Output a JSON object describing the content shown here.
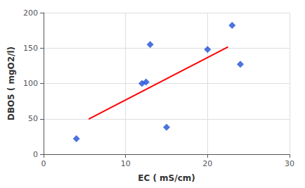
{
  "chart_data": {
    "type": "scatter",
    "xlabel": "EC ( mS/cm)",
    "ylabel": "DBO5 ( mgO2/l)",
    "series": [
      {
        "type": "scatter",
        "color": "#1F4FD8",
        "marker": "diamond",
        "x": [
          4,
          12,
          12.5,
          13,
          15,
          20,
          23,
          24
        ],
        "values": [
          22,
          100,
          102,
          155,
          38,
          148,
          182,
          127
        ]
      },
      {
        "type": "line",
        "color": "#FF0000",
        "line_style": "solid",
        "x": [
          5.5,
          22.5
        ],
        "values": [
          49.71,
          151.56
        ]
      }
    ],
    "xlim": [
      0,
      30
    ],
    "ylim": [
      0,
      200
    ],
    "xticks": [
      0,
      10,
      20,
      30
    ],
    "yticks": [
      0,
      50,
      100,
      150,
      200
    ],
    "grid": true
  }
}
